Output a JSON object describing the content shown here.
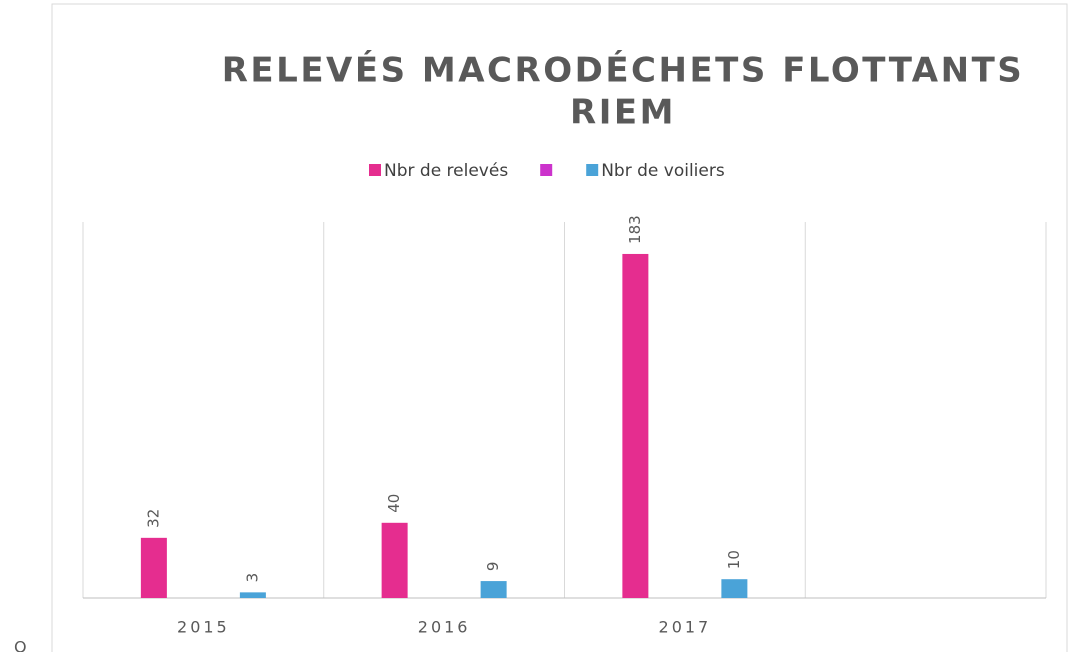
{
  "chart_data": {
    "type": "bar",
    "title": [
      "RELEVÉS MACRODÉCHETS FLOTTANTS",
      "RIEM"
    ],
    "categories": [
      "2015",
      "2016",
      "2017",
      null
    ],
    "series": [
      {
        "name": "Nbr de relevés",
        "color": "#e52d8f",
        "values": [
          32,
          40,
          183,
          null
        ]
      },
      {
        "name": null,
        "color": "#cc33cc",
        "values": [
          null,
          null,
          null,
          null
        ]
      },
      {
        "name": "Nbr de voiliers",
        "color": "#4aa3d8",
        "values": [
          3,
          9,
          10,
          null
        ]
      }
    ],
    "ylim": [
      0,
      200
    ],
    "stray_text": "O"
  }
}
